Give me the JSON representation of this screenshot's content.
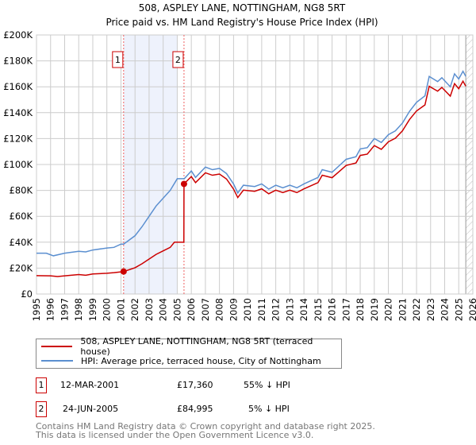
{
  "chart_data": {
    "type": "line",
    "title": "508, ASPLEY LANE, NOTTINGHAM, NG8 5RT",
    "subtitle": "Price paid vs. HM Land Registry's House Price Index (HPI)",
    "xlim": [
      1995,
      2026
    ],
    "ylim": [
      0,
      200000
    ],
    "x_ticks": [
      1995,
      1996,
      1997,
      1998,
      1999,
      2000,
      2001,
      2002,
      2003,
      2004,
      2005,
      2006,
      2007,
      2008,
      2009,
      2010,
      2011,
      2012,
      2013,
      2014,
      2015,
      2016,
      2017,
      2018,
      2019,
      2020,
      2021,
      2022,
      2023,
      2024,
      2025,
      2026
    ],
    "y_ticks": [
      0,
      20000,
      40000,
      60000,
      80000,
      100000,
      120000,
      140000,
      160000,
      180000,
      200000
    ],
    "y_tick_labels": [
      "£0",
      "£20K",
      "£40K",
      "£60K",
      "£80K",
      "£100K",
      "£120K",
      "£140K",
      "£160K",
      "£180K",
      "£200K"
    ],
    "grid": true,
    "shaded_range": [
      2001.19,
      2005.0
    ],
    "forecast_hatch_from": 2025.5,
    "series": [
      {
        "name": "508, ASPLEY LANE, NOTTINGHAM, NG8 5RT (terraced house)",
        "color": "#cc0000",
        "x": [
          1995,
          1996,
          1996.5,
          1997,
          1998,
          1998.5,
          1999,
          2000,
          2000.5,
          2001.19,
          2002,
          2002.5,
          2003,
          2003.5,
          2004,
          2004.5,
          2004.8,
          2005.47,
          2005.48,
          2006,
          2006.3,
          2007,
          2007.5,
          2008,
          2008.5,
          2009,
          2009.3,
          2009.7,
          2010.5,
          2011,
          2011.5,
          2012,
          2012.5,
          2013,
          2013.5,
          2014,
          2015,
          2015.3,
          2016,
          2016.5,
          2017,
          2017.7,
          2018,
          2018.5,
          2019,
          2019.5,
          2020,
          2020.5,
          2021,
          2021.5,
          2022,
          2022.6,
          2022.9,
          2023.5,
          2023.8,
          2024.4,
          2024.7,
          2025,
          2025.3,
          2025.5
        ],
        "y": [
          14200,
          14000,
          13500,
          14000,
          15000,
          14500,
          15500,
          16000,
          16500,
          17360,
          20300,
          23400,
          27000,
          30600,
          33300,
          36000,
          40000,
          40000,
          84995,
          90700,
          86000,
          93600,
          91700,
          92600,
          88800,
          81000,
          74500,
          80200,
          79300,
          81200,
          77400,
          80200,
          78300,
          80200,
          78300,
          81200,
          86000,
          91700,
          89800,
          94500,
          99300,
          101200,
          107000,
          108000,
          114600,
          111700,
          117500,
          120300,
          126000,
          134700,
          141300,
          146000,
          160400,
          156600,
          159500,
          152800,
          162400,
          158500,
          164300,
          160400
        ]
      },
      {
        "name": "HPI: Average price, terraced house, City of Nottingham",
        "color": "#5b8fd0",
        "x": [
          1995,
          1995.7,
          1996.2,
          1997,
          1998,
          1998.5,
          1999,
          2000,
          2000.5,
          2001,
          2001.19,
          2002,
          2002.5,
          2003,
          2003.5,
          2004,
          2004.5,
          2005,
          2005.5,
          2006,
          2006.3,
          2007,
          2007.5,
          2008,
          2008.5,
          2009,
          2009.3,
          2009.7,
          2010.5,
          2011,
          2011.5,
          2012,
          2012.5,
          2013,
          2013.5,
          2014,
          2015,
          2015.3,
          2016,
          2016.5,
          2017,
          2017.7,
          2018,
          2018.5,
          2019,
          2019.5,
          2020,
          2020.5,
          2021,
          2021.5,
          2022,
          2022.6,
          2022.9,
          2023.5,
          2023.8,
          2024.4,
          2024.7,
          2025,
          2025.3,
          2025.5
        ],
        "y": [
          31500,
          31500,
          29500,
          31500,
          33000,
          32500,
          34000,
          35500,
          36000,
          38500,
          38500,
          45000,
          52000,
          60000,
          68000,
          74000,
          80000,
          89000,
          89000,
          95000,
          90000,
          98000,
          96000,
          97000,
          93000,
          85000,
          78000,
          84000,
          83000,
          85000,
          81000,
          84000,
          82000,
          84000,
          82000,
          85000,
          90000,
          96000,
          94000,
          99000,
          104000,
          106000,
          112000,
          113000,
          120000,
          117000,
          123000,
          126000,
          132000,
          141000,
          148000,
          153000,
          168000,
          164000,
          167000,
          160000,
          170000,
          166000,
          172000,
          168000
        ]
      }
    ],
    "annotations": [
      {
        "label": "1",
        "x": 2001.19,
        "y": 17360
      },
      {
        "label": "2",
        "x": 2005.48,
        "y": 84995
      }
    ]
  },
  "legend": {
    "items": [
      "508, ASPLEY LANE, NOTTINGHAM, NG8 5RT (terraced house)",
      "HPI: Average price, terraced house, City of Nottingham"
    ]
  },
  "transactions": [
    {
      "num": "1",
      "date": "12-MAR-2001",
      "price": "£17,360",
      "hpi": "55% ↓ HPI"
    },
    {
      "num": "2",
      "date": "24-JUN-2005",
      "price": "£84,995",
      "hpi": "5% ↓ HPI"
    }
  ],
  "footer": {
    "line1": "Contains HM Land Registry data © Crown copyright and database right 2025.",
    "line2": "This data is licensed under the Open Government Licence v3.0."
  }
}
